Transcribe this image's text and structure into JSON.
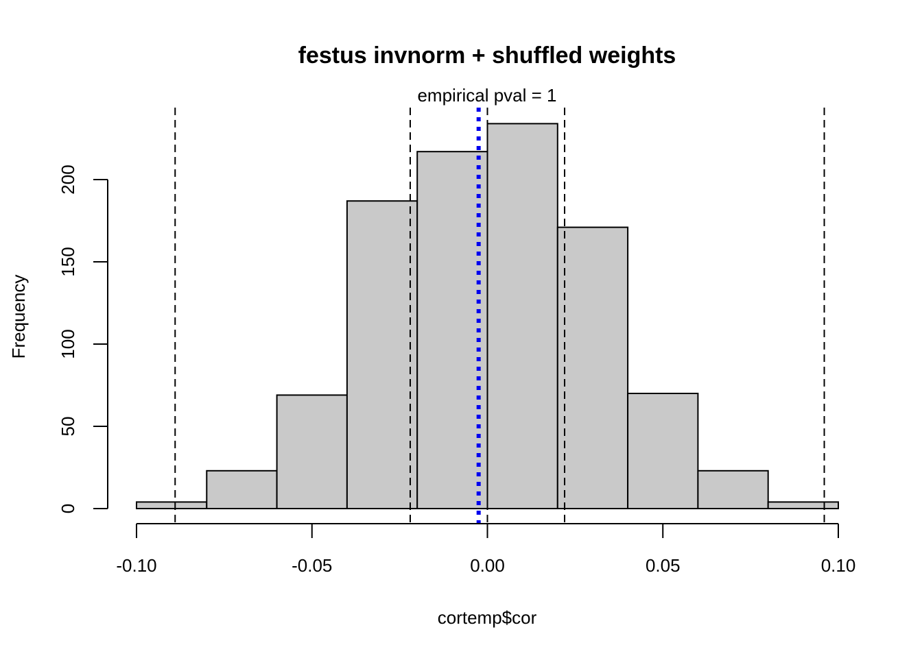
{
  "chart_data": {
    "type": "bar",
    "title": "festus invnorm + shuffled weights",
    "subtitle": "empirical pval = 1",
    "xlabel": "cortemp$cor",
    "ylabel": "Frequency",
    "xlim": [
      -0.1,
      0.1
    ],
    "ylim": [
      0,
      240
    ],
    "bin_edges": [
      -0.1,
      -0.08,
      -0.06,
      -0.04,
      -0.02,
      0.0,
      0.02,
      0.04,
      0.06,
      0.08,
      0.1
    ],
    "counts": [
      4,
      23,
      69,
      187,
      217,
      234,
      171,
      70,
      23,
      4
    ],
    "x_ticks": [
      -0.1,
      -0.05,
      0.0,
      0.05,
      0.1
    ],
    "x_tick_labels": [
      "-0.10",
      "-0.05",
      "0.00",
      "0.05",
      "0.10"
    ],
    "y_ticks": [
      0,
      50,
      100,
      150,
      200
    ],
    "y_tick_labels": [
      "0",
      "50",
      "100",
      "150",
      "200"
    ],
    "reference_lines": [
      -0.089,
      -0.022,
      0.0,
      0.022,
      0.096
    ],
    "observed_value": -0.0025,
    "observed_color": "#0000ee",
    "bar_color": "#c9c9c9"
  }
}
